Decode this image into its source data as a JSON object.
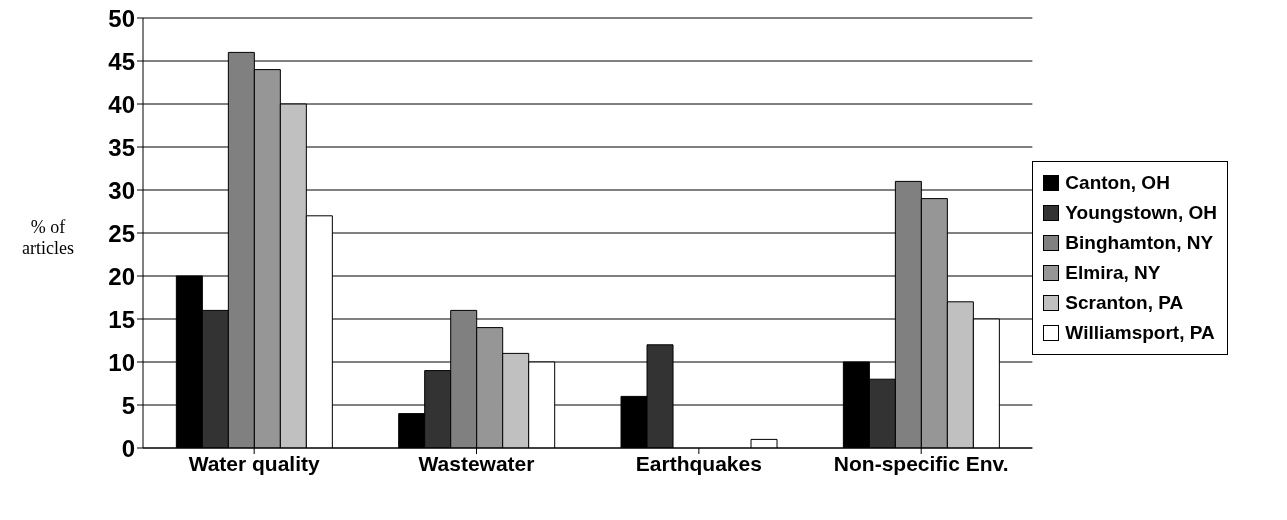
{
  "chart_data": {
    "type": "bar",
    "ylabel": "% of articles",
    "categories": [
      "Water quality",
      "Wastewater",
      "Earthquakes",
      "Non-specific Env."
    ],
    "series": [
      {
        "name": "Canton, OH",
        "color": "#000000",
        "values": [
          20,
          4,
          6,
          10
        ]
      },
      {
        "name": "Youngstown, OH",
        "color": "#333333",
        "values": [
          16,
          9,
          12,
          8
        ]
      },
      {
        "name": "Binghamton, NY",
        "color": "#808080",
        "values": [
          46,
          16,
          0,
          31
        ]
      },
      {
        "name": "Elmira, NY",
        "color": "#969696",
        "values": [
          44,
          14,
          0,
          29
        ]
      },
      {
        "name": "Scranton, PA",
        "color": "#c0c0c0",
        "values": [
          40,
          11,
          0,
          17
        ]
      },
      {
        "name": "Williamsport, PA",
        "color": "#ffffff",
        "values": [
          27,
          10,
          1,
          15
        ]
      }
    ],
    "ylim": [
      0,
      50
    ],
    "yticks": [
      0,
      5,
      10,
      15,
      20,
      25,
      30,
      35,
      40,
      45,
      50
    ],
    "grid": "y",
    "legend": "right"
  }
}
